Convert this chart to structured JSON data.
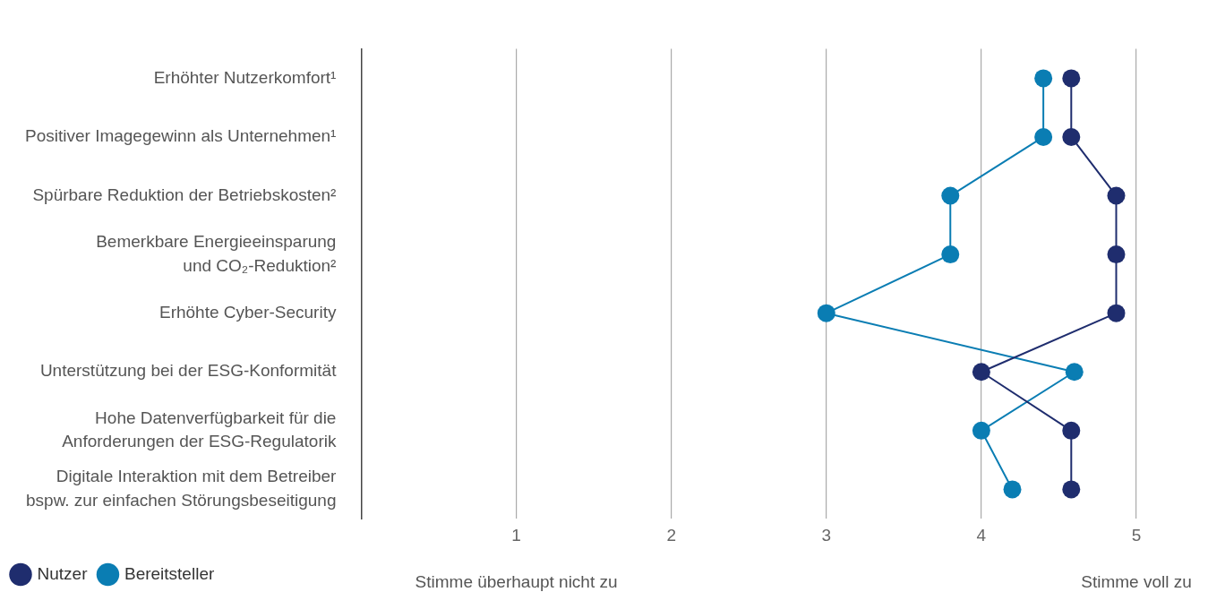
{
  "chart_data": {
    "type": "line",
    "orientation": "horizontal",
    "categories": [
      "Erhöhter Nutzerkomfort¹",
      "Positiver Imagegewinn als Unternehmen¹",
      "Spürbare Reduktion der Betriebskosten²",
      "Bemerkbare Energieeinsparung\nund CO₂-Reduktion²",
      "Erhöhte Cyber-Security",
      "Unterstützung bei der ESG-Konformität",
      "Hohe Datenverfügbarkeit für die\nAnforderungen der ESG-Regulatorik",
      "Digitale Interaktion mit dem Betreiber\nbspw. zur einfachen Störungsbeseitigung"
    ],
    "series": [
      {
        "name": "Nutzer",
        "color": "#1f2d6e",
        "values": [
          4.58,
          4.58,
          4.87,
          4.87,
          4.87,
          4.0,
          4.58,
          4.58
        ]
      },
      {
        "name": "Bereitsteller",
        "color": "#0a7db3",
        "values": [
          4.4,
          4.4,
          3.8,
          3.8,
          3.0,
          4.6,
          4.0,
          4.2
        ]
      }
    ],
    "xlim": [
      0,
      5
    ],
    "xticks": [
      1,
      2,
      3,
      4,
      5
    ],
    "grid": "x",
    "legend": "bottom left",
    "marker": "circle",
    "line_style": "solid",
    "annotations": [
      "Stimme überhaupt nicht zu",
      "Stimme voll zu"
    ]
  }
}
